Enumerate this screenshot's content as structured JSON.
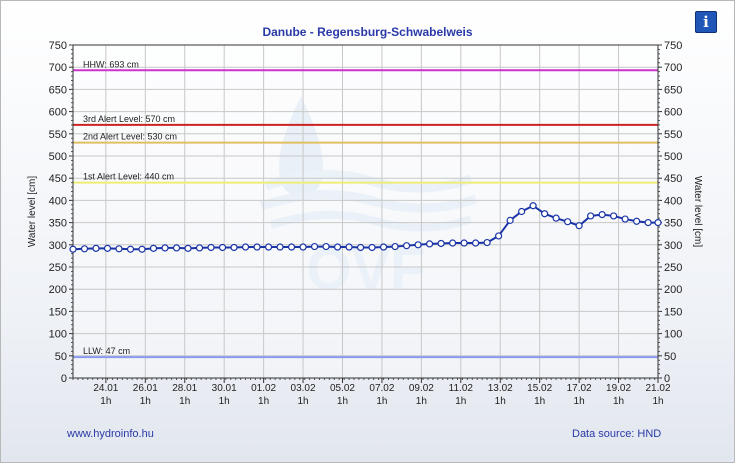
{
  "chart_data": {
    "type": "line",
    "title": "Danube - Regensburg-Schwabelweis",
    "ylabel_left": "Water level [cm]",
    "ylabel_right": "Water level [cm]",
    "ylim": [
      0,
      750
    ],
    "yticks": [
      0,
      50,
      100,
      150,
      200,
      250,
      300,
      350,
      400,
      450,
      500,
      550,
      600,
      650,
      700,
      750
    ],
    "xlim": [
      "2023-01-22T09:00",
      "2023-02-21T01:00"
    ],
    "xticks": [
      {
        "date": "24.01",
        "time": "1h",
        "x": "2023-01-24T01:00"
      },
      {
        "date": "26.01",
        "time": "1h",
        "x": "2023-01-26T01:00"
      },
      {
        "date": "28.01",
        "time": "1h",
        "x": "2023-01-28T01:00"
      },
      {
        "date": "30.01",
        "time": "1h",
        "x": "2023-01-30T01:00"
      },
      {
        "date": "01.02",
        "time": "1h",
        "x": "2023-02-01T01:00"
      },
      {
        "date": "03.02",
        "time": "1h",
        "x": "2023-02-03T01:00"
      },
      {
        "date": "05.02",
        "time": "1h",
        "x": "2023-02-05T01:00"
      },
      {
        "date": "07.02",
        "time": "1h",
        "x": "2023-02-07T01:00"
      },
      {
        "date": "09.02",
        "time": "1h",
        "x": "2023-02-09T01:00"
      },
      {
        "date": "11.02",
        "time": "1h",
        "x": "2023-02-11T01:00"
      },
      {
        "date": "13.02",
        "time": "1h",
        "x": "2023-02-13T01:00"
      },
      {
        "date": "15.02",
        "time": "1h",
        "x": "2023-02-15T01:00"
      },
      {
        "date": "17.02",
        "time": "1h",
        "x": "2023-02-17T01:00"
      },
      {
        "date": "19.02",
        "time": "1h",
        "x": "2023-02-19T01:00"
      },
      {
        "date": "21.02",
        "time": "1h",
        "x": "2023-02-21T01:00"
      }
    ],
    "grid": true,
    "reference_lines": [
      {
        "label": "HHW: 693 cm",
        "value": 693,
        "color": "#cc33cc"
      },
      {
        "label": "3rd Alert Level: 570 cm",
        "value": 570,
        "color": "#cc2222"
      },
      {
        "label": "2nd Alert Level: 530 cm",
        "value": 530,
        "color": "#e0c060"
      },
      {
        "label": "1st Alert Level: 440 cm",
        "value": 440,
        "color": "#eeee77"
      },
      {
        "label": "LLW: 47 cm",
        "value": 47,
        "color": "#8899ee"
      }
    ],
    "series": [
      {
        "color": "#1a34a8",
        "x": [
          "2023-01-22T09:00",
          "2023-01-22T23:00",
          "2023-01-23T13:00",
          "2023-01-24T03:00",
          "2023-01-24T17:00",
          "2023-01-25T07:00",
          "2023-01-25T21:00",
          "2023-01-26T11:00",
          "2023-01-27T01:00",
          "2023-01-27T15:00",
          "2023-01-28T05:00",
          "2023-01-28T19:00",
          "2023-01-29T09:00",
          "2023-01-29T23:00",
          "2023-01-30T13:00",
          "2023-01-31T03:00",
          "2023-01-31T17:00",
          "2023-02-01T07:00",
          "2023-02-01T21:00",
          "2023-02-02T11:00",
          "2023-02-03T01:00",
          "2023-02-03T15:00",
          "2023-02-04T05:00",
          "2023-02-04T19:00",
          "2023-02-05T09:00",
          "2023-02-05T23:00",
          "2023-02-06T13:00",
          "2023-02-07T03:00",
          "2023-02-07T17:00",
          "2023-02-08T07:00",
          "2023-02-08T21:00",
          "2023-02-09T11:00",
          "2023-02-10T01:00",
          "2023-02-10T15:00",
          "2023-02-11T05:00",
          "2023-02-11T19:00",
          "2023-02-12T09:00",
          "2023-02-12T23:00",
          "2023-02-13T13:00",
          "2023-02-14T03:00",
          "2023-02-14T17:00",
          "2023-02-15T07:00",
          "2023-02-15T21:00",
          "2023-02-16T11:00",
          "2023-02-17T01:00",
          "2023-02-17T15:00",
          "2023-02-18T05:00",
          "2023-02-18T19:00",
          "2023-02-19T09:00",
          "2023-02-19T23:00",
          "2023-02-20T13:00",
          "2023-02-21T01:00"
        ],
        "values": [
          290,
          291,
          292,
          292,
          291,
          290,
          290,
          292,
          293,
          293,
          292,
          293,
          294,
          294,
          294,
          295,
          295,
          295,
          295,
          295,
          295,
          296,
          296,
          295,
          295,
          294,
          294,
          295,
          296,
          298,
          300,
          302,
          303,
          304,
          304,
          304,
          305,
          320,
          355,
          375,
          388,
          370,
          360,
          352,
          343,
          365,
          368,
          365,
          358,
          353,
          350,
          350
        ]
      }
    ]
  },
  "info_button": {
    "label": "i"
  },
  "footer": {
    "left": "www.hydroinfo.hu",
    "right": "Data source: HND"
  }
}
